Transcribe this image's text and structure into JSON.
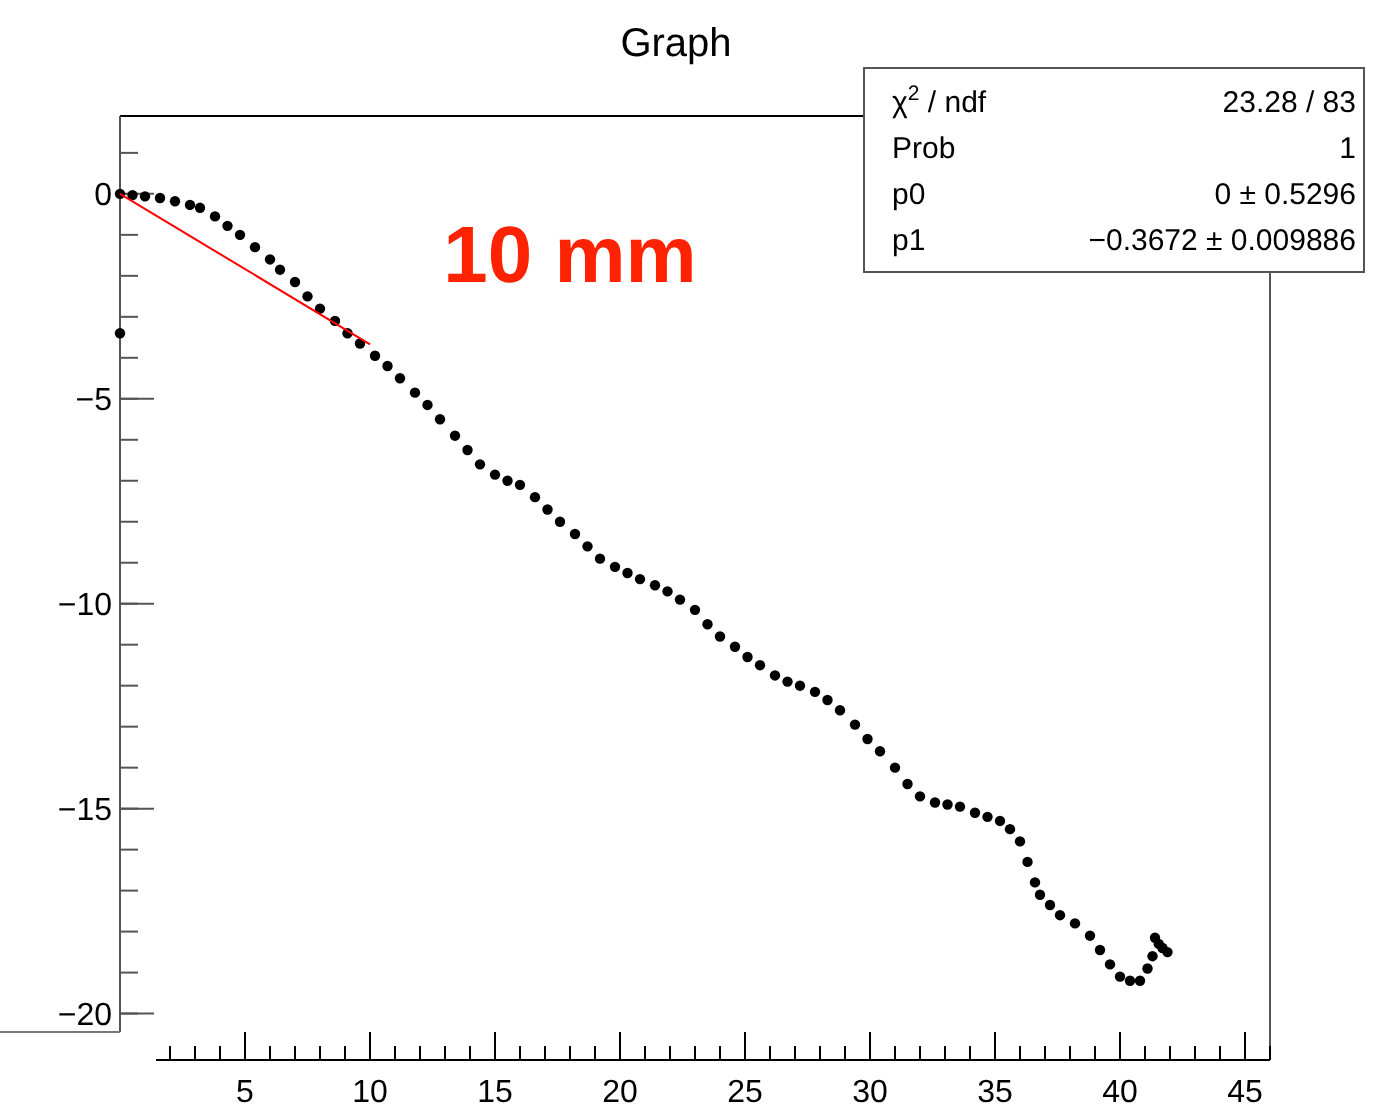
{
  "chart_data": {
    "type": "scatter",
    "title": "Graph",
    "xlim": [
      0,
      46
    ],
    "ylim": [
      -20.45,
      1.9
    ],
    "xticks": [
      5,
      10,
      15,
      20,
      25,
      30,
      35,
      40,
      45
    ],
    "yticks": [
      -20,
      -15,
      -10,
      -5,
      0
    ],
    "marker": "circle",
    "annotations": [
      "10 mm",
      "χ$^{2}$ / ndf",
      "23.28 / 83",
      "Prob",
      "1",
      "p0",
      "0 ± 0.5296",
      "p1",
      "−0.3672 ± 0.009886"
    ],
    "series": [
      {
        "color": "#000000",
        "x": [
          0,
          0,
          0.5,
          1,
          1.6,
          2.2,
          2.8,
          3.2,
          3.8,
          4.3,
          4.8,
          5.4,
          6,
          6.4,
          7,
          7.5,
          8,
          8.6,
          9.1,
          9.6,
          10.2,
          10.7,
          11.2,
          11.8,
          12.3,
          12.8,
          13.4,
          13.9,
          14.4,
          15,
          15.5,
          16,
          16.6,
          17.1,
          17.6,
          18.2,
          18.7,
          19.2,
          19.8,
          20.3,
          20.8,
          21.4,
          21.9,
          22.4,
          23,
          23.5,
          24,
          24.6,
          25.1,
          25.6,
          26.2,
          26.7,
          27.2,
          27.8,
          28.3,
          28.8,
          29.4,
          29.9,
          30.4,
          31,
          31.5,
          32,
          32.6,
          33.1,
          33.6,
          34.2,
          34.7,
          35.2,
          35.6,
          36,
          36.3,
          36.6,
          36.8,
          37.2,
          37.6,
          38.2,
          38.8,
          39.2,
          39.6,
          40,
          40.4,
          40.8,
          41.1,
          41.3,
          41.4,
          41.55,
          41.7,
          41.9
        ],
        "values": [
          0,
          -3.4,
          -0.03,
          -0.06,
          -0.1,
          -0.18,
          -0.27,
          -0.34,
          -0.55,
          -0.78,
          -1.0,
          -1.3,
          -1.6,
          -1.85,
          -2.15,
          -2.5,
          -2.8,
          -3.1,
          -3.4,
          -3.65,
          -3.95,
          -4.2,
          -4.5,
          -4.85,
          -5.15,
          -5.5,
          -5.9,
          -6.25,
          -6.6,
          -6.85,
          -7.0,
          -7.1,
          -7.4,
          -7.7,
          -8.0,
          -8.3,
          -8.6,
          -8.9,
          -9.1,
          -9.25,
          -9.4,
          -9.55,
          -9.7,
          -9.9,
          -10.15,
          -10.5,
          -10.8,
          -11.05,
          -11.3,
          -11.5,
          -11.75,
          -11.9,
          -12.0,
          -12.15,
          -12.35,
          -12.6,
          -12.95,
          -13.3,
          -13.6,
          -14.0,
          -14.4,
          -14.7,
          -14.85,
          -14.9,
          -14.95,
          -15.1,
          -15.2,
          -15.3,
          -15.5,
          -15.8,
          -16.3,
          -16.8,
          -17.1,
          -17.35,
          -17.6,
          -17.8,
          -18.1,
          -18.45,
          -18.8,
          -19.1,
          -19.2,
          -19.2,
          -18.9,
          -18.6,
          -18.15,
          -18.3,
          -18.4,
          -18.5
        ]
      },
      {
        "type": "line",
        "color": "#ff0000",
        "marker": "none",
        "x": [
          0,
          10
        ],
        "values": [
          0,
          -3.67
        ]
      }
    ]
  }
}
